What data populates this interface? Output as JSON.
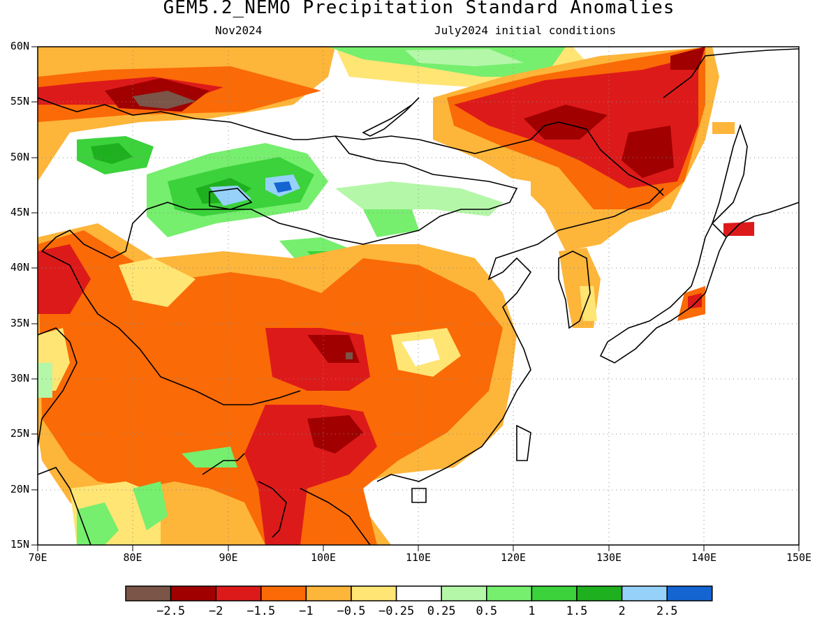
{
  "title": "GEM5.2_NEMO Precipitation Standard Anomalies",
  "subtitle_left": "Nov2024",
  "subtitle_right": "July2024 initial conditions",
  "lat_labels": [
    "60N",
    "55N",
    "50N",
    "45N",
    "40N",
    "35N",
    "30N",
    "25N",
    "20N",
    "15N"
  ],
  "lon_labels": [
    "70E",
    "80E",
    "90E",
    "100E",
    "110E",
    "120E",
    "130E",
    "140E",
    "150E"
  ],
  "colorbar": {
    "colors": [
      "#7a5548",
      "#a00000",
      "#dd1a1a",
      "#fa6a06",
      "#fdb53a",
      "#fee574",
      "#ffffff",
      "#b4f7a8",
      "#76ee6e",
      "#3bd23b",
      "#1fb01f",
      "#96d1fa",
      "#1464d2"
    ],
    "labels": [
      "−2.5",
      "−2",
      "−1.5",
      "−1",
      "−0.5",
      "−0.25",
      "0.25",
      "0.5",
      "1",
      "1.5",
      "2",
      "2.5"
    ]
  }
}
